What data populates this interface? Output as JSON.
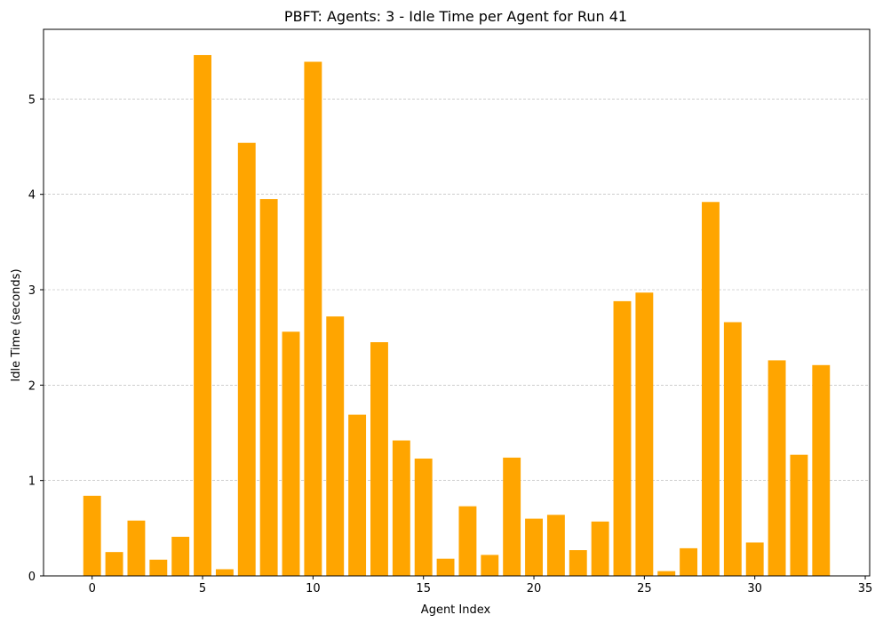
{
  "chart_data": {
    "type": "bar",
    "title": "PBFT: Agents: 3 - Idle Time per Agent for Run 41",
    "xlabel": "Agent Index",
    "ylabel": "Idle Time (seconds)",
    "x": [
      0,
      1,
      2,
      3,
      4,
      5,
      6,
      7,
      8,
      9,
      10,
      11,
      12,
      13,
      14,
      15,
      16,
      17,
      18,
      19,
      20,
      21,
      22,
      23,
      24,
      25,
      26,
      27,
      28,
      29,
      30,
      31,
      32,
      33
    ],
    "values": [
      0.84,
      0.25,
      0.58,
      0.17,
      0.41,
      5.46,
      0.07,
      4.54,
      3.95,
      2.56,
      5.39,
      2.72,
      1.69,
      2.45,
      1.42,
      1.23,
      0.18,
      0.73,
      0.22,
      1.24,
      0.6,
      0.64,
      0.27,
      0.57,
      2.88,
      2.97,
      0.05,
      0.29,
      3.92,
      2.66,
      0.35,
      2.26,
      1.27,
      2.21
    ],
    "xlim": [
      -2.2,
      35.2
    ],
    "ylim": [
      0,
      5.73
    ],
    "xticks": [
      0,
      5,
      10,
      15,
      20,
      25,
      30,
      35
    ],
    "yticks": [
      0,
      1,
      2,
      3,
      4,
      5
    ],
    "bar_color": "#ffa500",
    "grid": "y-dashed",
    "legend": "none"
  }
}
